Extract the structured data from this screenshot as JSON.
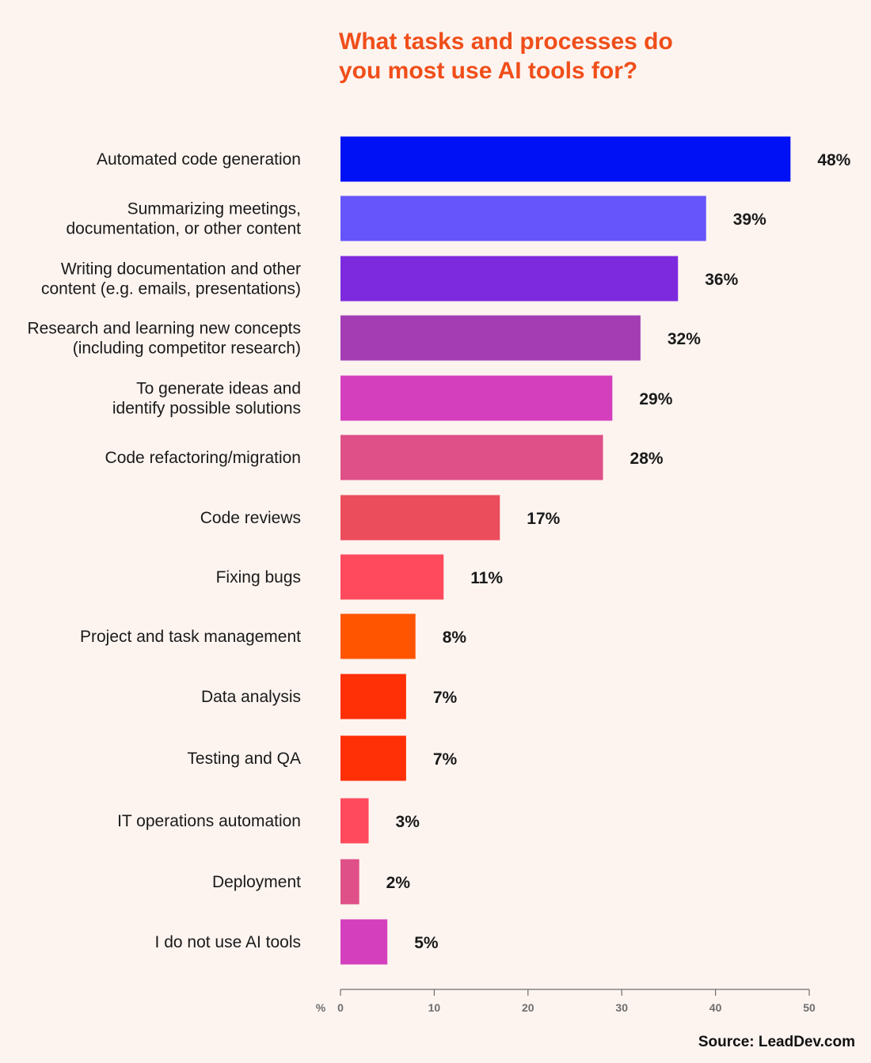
{
  "chart_data": {
    "type": "bar",
    "orientation": "horizontal",
    "title": [
      "What tasks and processes do",
      "you most use AI tools for?"
    ],
    "categories": [
      [
        "Automated code generation"
      ],
      [
        "Summarizing meetings,",
        "documentation, or other content"
      ],
      [
        "Writing documentation and other",
        "content (e.g. emails, presentations)"
      ],
      [
        "Research and learning new concepts",
        "(including competitor research)"
      ],
      [
        "To generate ideas and",
        "identify possible solutions"
      ],
      [
        "Code refactoring/migration"
      ],
      [
        "Code reviews"
      ],
      [
        "Fixing bugs"
      ],
      [
        "Project and task management"
      ],
      [
        "Data analysis"
      ],
      [
        "Testing and QA"
      ],
      [
        "IT operations automation"
      ],
      [
        "Deployment"
      ],
      [
        "I do not use AI tools"
      ]
    ],
    "values": [
      48,
      39,
      36,
      32,
      29,
      28,
      17,
      11,
      8,
      7,
      7,
      3,
      2,
      5
    ],
    "value_labels": [
      "48%",
      "39%",
      "36%",
      "32%",
      "29%",
      "28%",
      "17%",
      "11%",
      "8%",
      "7%",
      "7%",
      "3%",
      "2%",
      "5%"
    ],
    "colors": [
      "#0011f5",
      "#6655fb",
      "#7d2ade",
      "#a43cb4",
      "#d43fbd",
      "#df5088",
      "#ec4d5c",
      "#ff4a5d",
      "#ff5500",
      "#ff2f06",
      "#ff2f06",
      "#ff4a5d",
      "#df5088",
      "#d43fbd"
    ],
    "xlabel": "%",
    "xlim": [
      0,
      50
    ],
    "xticks": [
      0,
      10,
      20,
      30,
      40,
      50
    ],
    "grid": false
  },
  "source": "Source: LeadDev.com"
}
